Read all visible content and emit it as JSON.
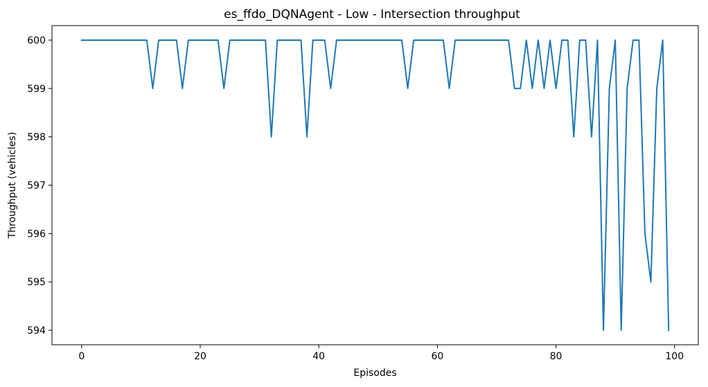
{
  "chart_data": {
    "type": "line",
    "title": "es_ffdo_DQNAgent - Low - Intersection throughput",
    "xlabel": "Episodes",
    "ylabel": "Throughput (vehicles)",
    "xlim": [
      -5,
      104
    ],
    "ylim": [
      593.7,
      600.3
    ],
    "x_ticks": [
      0,
      20,
      40,
      60,
      80,
      100
    ],
    "y_ticks": [
      594,
      595,
      596,
      597,
      598,
      599,
      600
    ],
    "grid": false,
    "legend": "none",
    "series": [
      {
        "color": "#1f77b4",
        "x": [
          0,
          1,
          2,
          3,
          4,
          5,
          6,
          7,
          8,
          9,
          10,
          11,
          12,
          13,
          14,
          15,
          16,
          17,
          18,
          19,
          20,
          21,
          22,
          23,
          24,
          25,
          26,
          27,
          28,
          29,
          30,
          31,
          32,
          33,
          34,
          35,
          36,
          37,
          38,
          39,
          40,
          41,
          42,
          43,
          44,
          45,
          46,
          47,
          48,
          49,
          50,
          51,
          52,
          53,
          54,
          55,
          56,
          57,
          58,
          59,
          60,
          61,
          62,
          63,
          64,
          65,
          66,
          67,
          68,
          69,
          70,
          71,
          72,
          73,
          74,
          75,
          76,
          77,
          78,
          79,
          80,
          81,
          82,
          83,
          84,
          85,
          86,
          87,
          88,
          89,
          90,
          91,
          92,
          93,
          94,
          95,
          96,
          97,
          98,
          99
        ],
        "values": [
          600,
          600,
          600,
          600,
          600,
          600,
          600,
          600,
          600,
          600,
          600,
          600,
          599,
          600,
          600,
          600,
          600,
          599,
          600,
          600,
          600,
          600,
          600,
          600,
          599,
          600,
          600,
          600,
          600,
          600,
          600,
          600,
          598,
          600,
          600,
          600,
          600,
          600,
          598,
          600,
          600,
          600,
          599,
          600,
          600,
          600,
          600,
          600,
          600,
          600,
          600,
          600,
          600,
          600,
          600,
          599,
          600,
          600,
          600,
          600,
          600,
          600,
          599,
          600,
          600,
          600,
          600,
          600,
          600,
          600,
          600,
          600,
          600,
          599,
          599,
          600,
          599,
          600,
          599,
          600,
          599,
          600,
          600,
          598,
          600,
          600,
          598,
          600,
          594,
          599,
          600,
          594,
          599,
          600,
          600,
          596,
          595,
          599,
          600,
          594
        ]
      }
    ]
  }
}
